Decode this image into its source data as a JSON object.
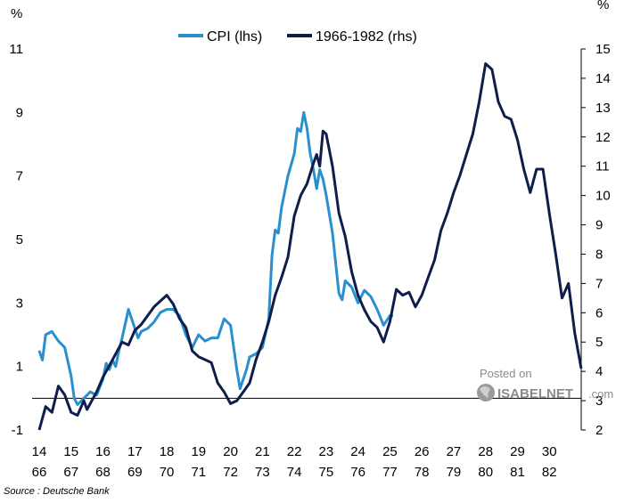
{
  "chart_data": {
    "type": "line",
    "title": "",
    "left_axis_unit": "%",
    "right_axis_unit": "%",
    "left_ticks": [
      -1,
      1,
      3,
      5,
      7,
      9,
      11
    ],
    "right_ticks": [
      2,
      3,
      4,
      5,
      6,
      7,
      8,
      9,
      10,
      11,
      12,
      13,
      14,
      15
    ],
    "ylim_left": [
      -1,
      11
    ],
    "ylim_right": [
      2,
      15
    ],
    "x_ticks_top": [
      "14",
      "15",
      "16",
      "17",
      "18",
      "19",
      "20",
      "21",
      "22",
      "23",
      "24",
      "25",
      "26",
      "27",
      "28",
      "29",
      "30"
    ],
    "x_ticks_bottom": [
      "66",
      "67",
      "68",
      "69",
      "70",
      "71",
      "72",
      "73",
      "74",
      "75",
      "76",
      "77",
      "78",
      "79",
      "80",
      "81",
      "82"
    ],
    "xlim": [
      14,
      31
    ],
    "legend_position": "top-center",
    "series": [
      {
        "name": "CPI (lhs)",
        "axis": "left",
        "color": "#2a8fcf",
        "x": [
          14.0,
          14.1,
          14.2,
          14.4,
          14.6,
          14.8,
          15.0,
          15.1,
          15.2,
          15.3,
          15.4,
          15.5,
          15.6,
          15.8,
          16.0,
          16.1,
          16.2,
          16.3,
          16.4,
          16.5,
          16.6,
          16.8,
          17.0,
          17.1,
          17.2,
          17.4,
          17.6,
          17.8,
          18.0,
          18.2,
          18.4,
          18.6,
          18.8,
          19.0,
          19.2,
          19.4,
          19.6,
          19.8,
          20.0,
          20.2,
          20.3,
          20.4,
          20.5,
          20.6,
          20.8,
          21.0,
          21.2,
          21.3,
          21.4,
          21.5,
          21.6,
          21.8,
          22.0,
          22.1,
          22.2,
          22.3,
          22.4,
          22.5,
          22.6,
          22.7,
          22.8,
          22.9,
          23.0,
          23.2,
          23.4,
          23.5,
          23.6,
          23.8,
          24.0,
          24.2,
          24.4,
          24.6,
          24.8,
          25.0,
          25.1
        ],
        "values": [
          1.5,
          1.2,
          2.0,
          2.1,
          1.8,
          1.6,
          0.7,
          0.0,
          -0.2,
          -0.1,
          0.0,
          0.1,
          0.2,
          0.1,
          0.6,
          1.1,
          0.9,
          1.2,
          1.0,
          1.5,
          1.9,
          2.8,
          2.2,
          1.9,
          2.1,
          2.2,
          2.4,
          2.7,
          2.8,
          2.8,
          2.6,
          2.0,
          1.6,
          2.0,
          1.8,
          1.9,
          1.9,
          2.5,
          2.3,
          0.9,
          0.3,
          0.6,
          0.9,
          1.3,
          1.4,
          1.6,
          2.5,
          4.5,
          5.3,
          5.2,
          6.0,
          7.0,
          7.7,
          8.5,
          8.4,
          9.0,
          8.5,
          7.7,
          7.2,
          6.6,
          7.2,
          6.9,
          6.4,
          5.2,
          3.3,
          3.1,
          3.7,
          3.5,
          3.0,
          3.4,
          3.2,
          2.8,
          2.3,
          2.6,
          2.6
        ]
      },
      {
        "name": "1966-1982 (rhs)",
        "axis": "right",
        "color": "#0f1d4a",
        "x": [
          14.0,
          14.2,
          14.4,
          14.6,
          14.8,
          15.0,
          15.2,
          15.4,
          15.5,
          15.6,
          15.8,
          16.0,
          16.2,
          16.4,
          16.6,
          16.8,
          17.0,
          17.2,
          17.4,
          17.6,
          17.8,
          18.0,
          18.2,
          18.4,
          18.6,
          18.8,
          19.0,
          19.2,
          19.4,
          19.6,
          19.8,
          20.0,
          20.2,
          20.4,
          20.6,
          20.8,
          21.0,
          21.2,
          21.4,
          21.6,
          21.8,
          22.0,
          22.2,
          22.4,
          22.6,
          22.7,
          22.8,
          22.9,
          23.0,
          23.2,
          23.4,
          23.6,
          23.8,
          24.0,
          24.2,
          24.4,
          24.6,
          24.8,
          25.0,
          25.2,
          25.4,
          25.6,
          25.8,
          26.0,
          26.2,
          26.4,
          26.6,
          26.8,
          27.0,
          27.2,
          27.4,
          27.6,
          27.8,
          28.0,
          28.2,
          28.4,
          28.6,
          28.8,
          29.0,
          29.2,
          29.4,
          29.6,
          29.8,
          30.0,
          30.2,
          30.4,
          30.6,
          30.8,
          31.0
        ],
        "values": [
          2.0,
          2.8,
          2.6,
          3.5,
          3.2,
          2.6,
          2.5,
          3.0,
          2.7,
          2.9,
          3.3,
          3.8,
          4.2,
          4.6,
          5.0,
          4.9,
          5.4,
          5.6,
          5.9,
          6.2,
          6.4,
          6.6,
          6.3,
          5.8,
          5.5,
          4.7,
          4.5,
          4.4,
          4.3,
          3.6,
          3.3,
          2.9,
          3.0,
          3.3,
          3.6,
          4.4,
          5.0,
          5.7,
          6.6,
          7.2,
          7.9,
          9.3,
          10.0,
          10.4,
          11.1,
          11.4,
          11.0,
          12.2,
          12.1,
          11.0,
          9.4,
          8.6,
          7.4,
          6.6,
          6.1,
          5.7,
          5.5,
          5.0,
          5.7,
          6.8,
          6.6,
          6.7,
          6.2,
          6.6,
          7.2,
          7.8,
          8.8,
          9.4,
          10.1,
          10.7,
          11.4,
          12.1,
          13.2,
          14.5,
          14.3,
          13.2,
          12.7,
          12.6,
          11.9,
          10.9,
          10.1,
          10.9,
          10.9,
          9.4,
          8.0,
          6.5,
          7.0,
          5.3,
          4.1
        ]
      }
    ]
  },
  "legend": {
    "cpi_label": "CPI (lhs)",
    "period_label": "1966-1982 (rhs)"
  },
  "source": "Source : Deutsche Bank",
  "watermark": {
    "posted_on": "Posted on",
    "brand": "ISABELNET",
    "brand_suffix": ".com"
  },
  "colors": {
    "cpi": "#2a8fcf",
    "period": "#0f1d4a",
    "axis": "#000000",
    "watermark": "#8a8a8a"
  }
}
